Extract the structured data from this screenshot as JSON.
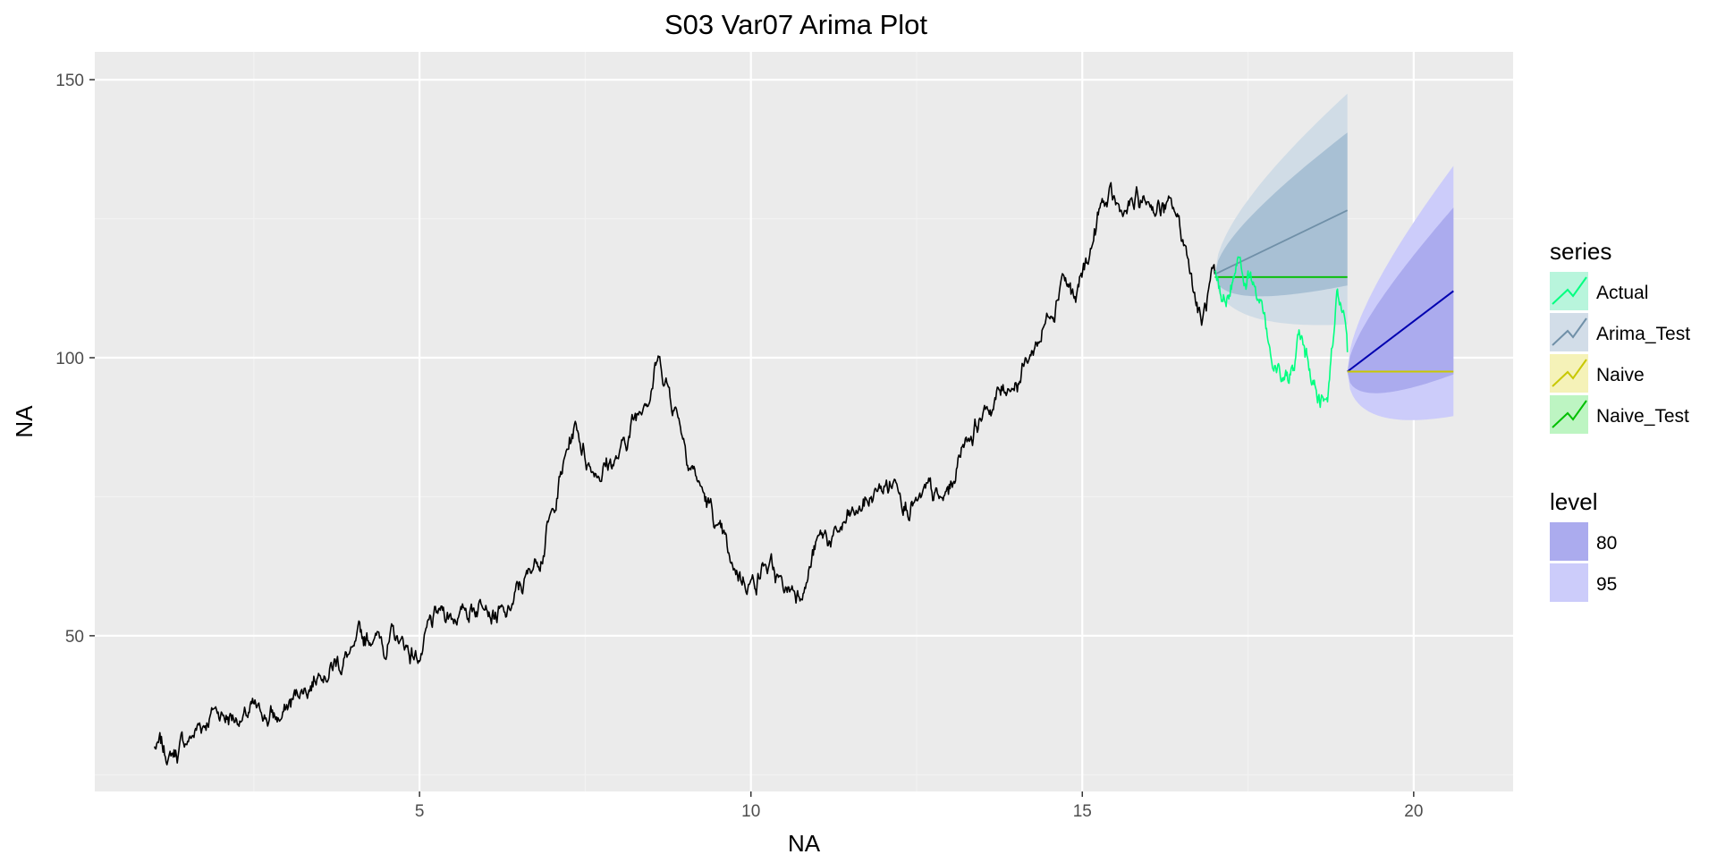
{
  "colors": {
    "panel_bg": "#EBEBEB",
    "grid_major": "#FFFFFF",
    "grid_minor": "#F2F2F2",
    "history_line": "#000000",
    "actual": "#00FF80",
    "arima_test_mean": "#7090A8",
    "arima_test_band80": "#A8C0D4",
    "arima_test_band95": "#D0DCE6",
    "naive_test": "#00C000",
    "forecast_mean": "#0000B0",
    "forecast_band80": "#ABABEE",
    "forecast_band95": "#CCCCFA",
    "naive": "#C8C800"
  },
  "chart_data": {
    "type": "line",
    "title": "S03 Var07 Arima Plot",
    "xlabel": "NA",
    "ylabel": "NA",
    "xlim": [
      0.1,
      21.5
    ],
    "ylim": [
      22,
      155
    ],
    "x_ticks": [
      5,
      10,
      15,
      20
    ],
    "y_ticks": [
      50,
      100,
      150
    ],
    "grid": true,
    "legend_position": "right",
    "legend": {
      "series_title": "series",
      "series": [
        "Actual",
        "Arima_Test",
        "Naive",
        "Naive_Test"
      ],
      "level_title": "level",
      "levels": [
        "80",
        "95"
      ]
    },
    "history": {
      "x_start": 1.0,
      "x_end": 17.0,
      "anchors": [
        [
          1.0,
          30
        ],
        [
          1.2,
          28
        ],
        [
          1.5,
          31
        ],
        [
          1.9,
          37
        ],
        [
          2.3,
          35
        ],
        [
          2.6,
          36
        ],
        [
          2.9,
          35
        ],
        [
          3.2,
          40
        ],
        [
          3.5,
          44
        ],
        [
          4.0,
          47
        ],
        [
          4.3,
          50
        ],
        [
          4.7,
          49
        ],
        [
          5.0,
          46
        ],
        [
          5.3,
          54
        ],
        [
          5.6,
          54
        ],
        [
          6.0,
          57
        ],
        [
          6.3,
          53
        ],
        [
          6.7,
          62
        ],
        [
          7.0,
          72
        ],
        [
          7.2,
          82
        ],
        [
          7.35,
          88
        ],
        [
          7.6,
          80
        ],
        [
          8.0,
          82
        ],
        [
          8.4,
          93
        ],
        [
          8.6,
          100
        ],
        [
          8.9,
          90
        ],
        [
          9.2,
          78
        ],
        [
          9.5,
          69
        ],
        [
          9.7,
          62
        ],
        [
          10.0,
          60
        ],
        [
          10.2,
          63
        ],
        [
          10.5,
          58
        ],
        [
          10.8,
          59
        ],
        [
          11.0,
          67
        ],
        [
          11.3,
          68
        ],
        [
          11.6,
          72
        ],
        [
          11.9,
          76
        ],
        [
          12.2,
          78
        ],
        [
          12.5,
          74
        ],
        [
          12.9,
          74
        ],
        [
          13.05,
          77
        ],
        [
          13.2,
          85
        ],
        [
          13.5,
          90
        ],
        [
          13.9,
          95
        ],
        [
          14.2,
          100
        ],
        [
          14.5,
          108
        ],
        [
          14.7,
          116
        ],
        [
          14.9,
          110
        ],
        [
          15.1,
          118
        ],
        [
          15.3,
          128
        ],
        [
          15.6,
          126
        ],
        [
          16.0,
          128
        ],
        [
          16.4,
          126
        ],
        [
          16.6,
          118
        ],
        [
          16.8,
          106
        ],
        [
          17.0,
          115
        ]
      ]
    },
    "actual": {
      "x_start": 17.0,
      "x_end": 19.0,
      "anchors": [
        [
          17.0,
          115
        ],
        [
          17.1,
          110
        ],
        [
          17.35,
          119
        ],
        [
          17.6,
          113
        ],
        [
          17.8,
          103
        ],
        [
          18.0,
          96
        ],
        [
          18.2,
          97
        ],
        [
          18.3,
          103
        ],
        [
          18.45,
          96
        ],
        [
          18.7,
          92
        ],
        [
          18.85,
          112
        ],
        [
          19.0,
          101
        ]
      ]
    },
    "arima_test": {
      "x_start": 17.0,
      "x_end": 19.0,
      "mean": [
        115,
        126.5
      ],
      "lo80": [
        115,
        113
      ],
      "hi80": [
        115,
        140.5
      ],
      "lo95": [
        115,
        106
      ],
      "hi95": [
        115,
        147.5
      ]
    },
    "naive_test": {
      "x": [
        17.0,
        19.0
      ],
      "y": [
        114.5,
        114.5
      ]
    },
    "forecast": {
      "x_start": 19.0,
      "x_end": 20.6,
      "mean": [
        97.5,
        112
      ],
      "lo80": [
        97.5,
        97
      ],
      "hi80": [
        97.5,
        127
      ],
      "lo95": [
        97.5,
        89.5
      ],
      "hi95": [
        97.5,
        134.5
      ]
    },
    "naive": {
      "x": [
        19.0,
        20.6
      ],
      "y": [
        97.5,
        97.5
      ]
    }
  }
}
